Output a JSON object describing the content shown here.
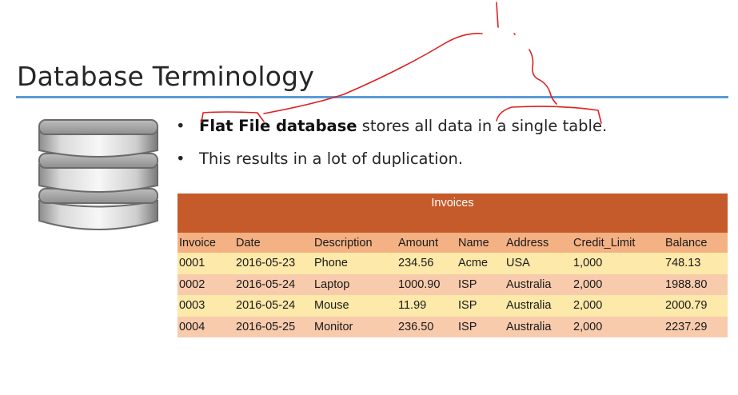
{
  "slide": {
    "title": "Database Terminology",
    "icon": "database-stack-icon"
  },
  "bullets": [
    {
      "bold": "Flat File database",
      "rest": " stores all data in a single table."
    },
    {
      "bold": "",
      "rest": "This results in a lot of duplication."
    }
  ],
  "bullet_glyph": "•",
  "table": {
    "caption": "Invoices",
    "headers": [
      "Invoice",
      "Date",
      "Description",
      "Amount",
      "Name",
      "Address",
      "Credit_Limit",
      "Balance"
    ],
    "rows": [
      [
        "0001",
        "2016-05-23",
        "Phone",
        "234.56",
        "Acme",
        "USA",
        "1,000",
        "748.13"
      ],
      [
        "0002",
        "2016-05-24",
        "Laptop",
        "1000.90",
        "ISP",
        "Australia",
        "2,000",
        "1988.80"
      ],
      [
        "0003",
        "2016-05-24",
        "Mouse",
        "11.99",
        "ISP",
        "Australia",
        "2,000",
        "2000.79"
      ],
      [
        "0004",
        "2016-05-25",
        "Monitor",
        "236.50",
        "ISP",
        "Australia",
        "2,000",
        "2237.29"
      ]
    ]
  },
  "colors": {
    "accent_rule": "#5b9bd5",
    "table_caption": "#c55a2b",
    "table_header": "#f4b183",
    "row_light": "#fde9a9",
    "row_dark": "#f8cbad",
    "annotation_ink": "#e02020"
  }
}
